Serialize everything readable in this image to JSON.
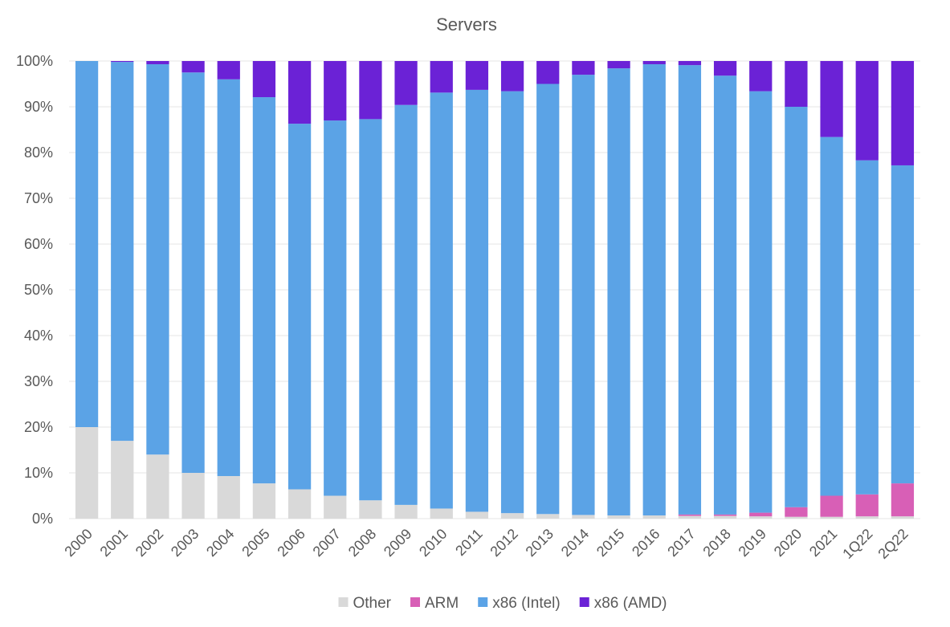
{
  "chart_data": {
    "type": "bar",
    "stacked": true,
    "percent": true,
    "title": "Servers",
    "xlabel": "",
    "ylabel": "",
    "ylim": [
      0,
      100
    ],
    "y_ticks": [
      "0%",
      "10%",
      "20%",
      "30%",
      "40%",
      "50%",
      "60%",
      "70%",
      "80%",
      "90%",
      "100%"
    ],
    "grid": true,
    "legend_position": "bottom",
    "categories": [
      "2000",
      "2001",
      "2002",
      "2003",
      "2004",
      "2005",
      "2006",
      "2007",
      "2008",
      "2009",
      "2010",
      "2011",
      "2012",
      "2013",
      "2014",
      "2015",
      "2016",
      "2017",
      "2018",
      "2019",
      "2020",
      "2021",
      "1Q22",
      "2Q22"
    ],
    "series": [
      {
        "name": "Other",
        "color": "#d9d9d9",
        "values": [
          20,
          17,
          14,
          10,
          9.3,
          7.7,
          6.4,
          5,
          4,
          3,
          2.2,
          1.5,
          1.2,
          1,
          0.8,
          0.7,
          0.7,
          0.6,
          0.6,
          0.5,
          0.4,
          0.4,
          0.5,
          0.5
        ]
      },
      {
        "name": "ARM",
        "color": "#d85fb6",
        "values": [
          0,
          0,
          0,
          0,
          0,
          0,
          0,
          0,
          0,
          0,
          0,
          0,
          0,
          0,
          0,
          0,
          0,
          0.3,
          0.3,
          0.8,
          2.1,
          4.6,
          4.8,
          7.2
        ]
      },
      {
        "name": "x86 (Intel)",
        "color": "#5ba3e6",
        "values": [
          80,
          82.8,
          85.3,
          87.5,
          86.7,
          84.4,
          79.9,
          82,
          83.3,
          87.4,
          90.9,
          92.2,
          92.2,
          94,
          96.2,
          97.7,
          98.6,
          98.2,
          95.9,
          92.1,
          87.5,
          78.4,
          73,
          69.5
        ]
      },
      {
        "name": "x86 (AMD)",
        "color": "#6b22d6",
        "values": [
          0,
          0.2,
          0.7,
          2.5,
          4,
          7.9,
          13.7,
          13,
          12.7,
          9.6,
          6.9,
          6.3,
          6.6,
          5,
          3,
          1.6,
          0.7,
          0.9,
          3.2,
          6.6,
          10,
          16.6,
          21.7,
          22.8
        ]
      }
    ]
  }
}
